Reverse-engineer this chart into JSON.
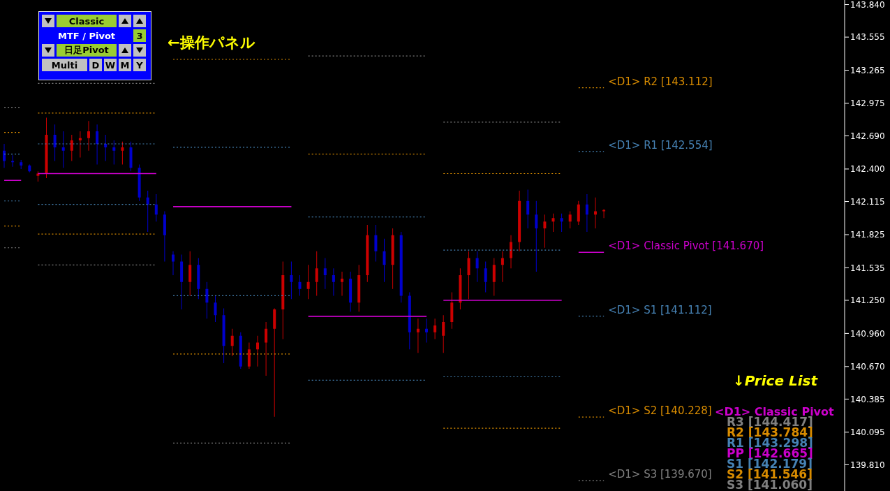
{
  "chart_data": {
    "type": "candlestick",
    "categories": [
      null,
      null,
      null,
      null,
      null,
      null,
      null,
      null,
      null,
      null,
      null,
      null,
      null,
      null,
      null,
      null,
      null,
      null,
      null,
      null,
      null,
      null,
      null,
      null,
      null,
      null,
      null,
      null,
      null,
      null,
      null,
      null,
      null,
      null,
      null,
      null,
      null,
      null,
      null,
      null,
      null,
      null,
      null,
      null,
      null,
      null,
      null,
      null,
      null,
      null,
      null,
      null,
      null,
      null,
      null,
      null,
      null,
      null,
      null,
      null,
      null,
      null,
      null,
      null,
      null,
      null,
      null,
      null,
      null,
      null,
      null,
      null,
      null,
      null,
      null,
      null,
      null,
      null,
      null,
      null,
      null,
      null,
      null,
      null,
      null,
      null,
      null,
      null,
      null,
      null,
      null,
      null,
      null,
      null,
      null,
      null,
      null,
      null,
      null,
      null
    ],
    "ohlc": [
      [
        142.56,
        142.62,
        142.41,
        142.47
      ],
      [
        142.47,
        142.52,
        142.42,
        142.46
      ],
      [
        142.46,
        142.48,
        142.4,
        142.43
      ],
      [
        142.43,
        142.44,
        142.37,
        142.38
      ],
      [
        142.34,
        142.38,
        142.29,
        142.36
      ],
      [
        142.36,
        142.85,
        142.32,
        142.7
      ],
      [
        142.7,
        142.79,
        142.47,
        142.59
      ],
      [
        142.59,
        142.73,
        142.41,
        142.56
      ],
      [
        142.56,
        142.7,
        142.47,
        142.65
      ],
      [
        142.65,
        142.73,
        142.5,
        142.67
      ],
      [
        142.67,
        142.82,
        142.56,
        142.73
      ],
      [
        142.73,
        142.79,
        142.44,
        142.62
      ],
      [
        142.62,
        142.7,
        142.47,
        142.59
      ],
      [
        142.59,
        142.65,
        142.44,
        142.56
      ],
      [
        142.56,
        142.64,
        142.44,
        142.59
      ],
      [
        142.59,
        142.64,
        142.38,
        142.41
      ],
      [
        142.41,
        142.44,
        142.12,
        142.15
      ],
      [
        142.15,
        142.21,
        141.85,
        142.09
      ],
      [
        142.09,
        142.18,
        141.94,
        142.0
      ],
      [
        142.0,
        142.03,
        141.59,
        141.82
      ],
      [
        141.65,
        141.68,
        141.47,
        141.59
      ],
      [
        141.59,
        141.65,
        141.17,
        141.41
      ],
      [
        141.41,
        141.68,
        141.29,
        141.56
      ],
      [
        141.56,
        141.62,
        141.26,
        141.35
      ],
      [
        141.35,
        141.41,
        141.09,
        141.23
      ],
      [
        141.23,
        141.29,
        141.06,
        141.12
      ],
      [
        141.12,
        141.18,
        140.7,
        140.85
      ],
      [
        140.85,
        141.0,
        140.76,
        140.94
      ],
      [
        140.94,
        140.97,
        140.65,
        140.67
      ],
      [
        140.67,
        140.88,
        140.65,
        140.82
      ],
      [
        140.82,
        140.94,
        140.67,
        140.88
      ],
      [
        140.88,
        141.06,
        140.59,
        141.0
      ],
      [
        141.0,
        141.18,
        140.23,
        141.17
      ],
      [
        141.17,
        141.59,
        140.91,
        141.47
      ],
      [
        141.47,
        141.59,
        141.26,
        141.41
      ],
      [
        141.41,
        141.47,
        141.29,
        141.35
      ],
      [
        141.35,
        141.56,
        141.26,
        141.41
      ],
      [
        141.41,
        141.68,
        141.29,
        141.53
      ],
      [
        141.53,
        141.62,
        141.35,
        141.47
      ],
      [
        141.47,
        141.53,
        141.29,
        141.41
      ],
      [
        141.41,
        141.5,
        141.29,
        141.44
      ],
      [
        141.44,
        141.5,
        141.15,
        141.23
      ],
      [
        141.23,
        141.56,
        141.15,
        141.47
      ],
      [
        141.47,
        141.91,
        141.41,
        141.82
      ],
      [
        141.82,
        141.91,
        141.59,
        141.68
      ],
      [
        141.68,
        141.79,
        141.41,
        141.56
      ],
      [
        141.56,
        141.88,
        141.35,
        141.82
      ],
      [
        141.82,
        141.85,
        141.23,
        141.29
      ],
      [
        141.29,
        141.32,
        140.82,
        140.97
      ],
      [
        140.97,
        141.09,
        140.79,
        141.0
      ],
      [
        141.0,
        141.09,
        140.88,
        140.97
      ],
      [
        140.97,
        141.09,
        140.91,
        141.03
      ],
      [
        140.94,
        141.12,
        140.79,
        141.06
      ],
      [
        141.06,
        141.32,
        141.0,
        141.23
      ],
      [
        141.23,
        141.53,
        141.17,
        141.47
      ],
      [
        141.47,
        141.68,
        141.26,
        141.62
      ],
      [
        141.62,
        141.68,
        141.41,
        141.53
      ],
      [
        141.53,
        141.59,
        141.32,
        141.41
      ],
      [
        141.41,
        141.62,
        141.29,
        141.56
      ],
      [
        141.56,
        141.68,
        141.41,
        141.62
      ],
      [
        141.62,
        141.82,
        141.53,
        141.76
      ],
      [
        141.76,
        142.21,
        141.68,
        142.12
      ],
      [
        142.12,
        142.22,
        141.88,
        142.0
      ],
      [
        142.0,
        142.12,
        141.5,
        141.88
      ],
      [
        141.88,
        142.0,
        141.71,
        141.94
      ],
      [
        141.94,
        142.01,
        141.85,
        141.97
      ],
      [
        141.97,
        142.01,
        141.85,
        141.94
      ],
      [
        141.94,
        142.03,
        141.88,
        142.0
      ],
      [
        141.94,
        142.12,
        141.91,
        142.09
      ],
      [
        142.09,
        142.18,
        141.85,
        142.0
      ],
      [
        142.0,
        142.15,
        141.88,
        142.03
      ],
      [
        142.03,
        142.05,
        141.97,
        142.04
      ],
      null,
      null,
      null,
      null,
      null,
      null,
      null,
      null,
      null,
      null,
      null,
      null,
      null,
      null,
      null,
      null,
      null,
      null,
      null,
      null,
      null,
      null,
      null,
      null,
      null,
      null,
      null,
      null
    ],
    "colors": [
      "#0000cc",
      "#0000cc",
      "#0000cc",
      "#0000cc",
      "#cc0000",
      "#cc0000",
      "#0000cc",
      "#0000cc",
      "#cc0000",
      "#cc0000",
      "#cc0000",
      "#0000cc",
      "#0000cc",
      "#0000cc",
      "#cc0000",
      "#0000cc",
      "#0000cc",
      "#0000cc",
      "#0000cc",
      "#0000cc",
      "#0000cc",
      "#0000cc",
      "#cc0000",
      "#0000cc",
      "#0000cc",
      "#0000cc",
      "#0000cc",
      "#cc0000",
      "#0000cc",
      "#cc0000",
      "#cc0000",
      "#cc0000",
      "#cc0000",
      "#cc0000",
      "#0000cc",
      "#0000cc",
      "#cc0000",
      "#cc0000",
      "#0000cc",
      "#0000cc",
      "#cc0000",
      "#0000cc",
      "#cc0000",
      "#cc0000",
      "#0000cc",
      "#0000cc",
      "#cc0000",
      "#0000cc",
      "#0000cc",
      "#cc0000",
      "#0000cc",
      "#cc0000",
      "#cc0000",
      "#cc0000",
      "#cc0000",
      "#cc0000",
      "#0000cc",
      "#0000cc",
      "#cc0000",
      "#cc0000",
      "#cc0000",
      "#cc0000",
      "#0000cc",
      "#0000cc",
      "#cc0000",
      "#cc0000",
      "#0000cc",
      "#cc0000",
      "#cc0000",
      "#0000cc",
      "#cc0000",
      "#cc0000",
      null,
      null,
      null,
      null,
      null,
      null,
      null,
      null,
      null,
      null,
      null,
      null,
      null,
      null,
      null,
      null,
      null,
      null,
      null,
      null,
      null,
      null,
      null,
      null,
      null,
      null,
      null,
      null
    ],
    "series": [
      {
        "type": "line",
        "line_style": "dotted",
        "color": "#808080",
        "values": [
          142.94,
          142.94,
          142.94,
          null,
          143.15,
          143.15,
          143.15,
          143.15,
          143.15,
          143.15,
          143.15,
          143.15,
          143.15,
          143.15,
          143.15,
          143.15,
          143.15,
          143.15,
          143.15,
          null,
          null,
          null,
          null,
          null,
          null,
          null,
          null,
          null,
          null,
          null,
          null,
          null,
          null,
          null,
          null,
          null,
          143.39,
          143.39,
          143.39,
          143.39,
          143.39,
          143.39,
          143.39,
          143.39,
          143.39,
          143.39,
          143.39,
          143.39,
          143.39,
          143.39,
          143.39,
          null,
          142.81,
          142.81,
          142.81,
          142.81,
          142.81,
          142.81,
          142.81,
          142.81,
          142.81,
          142.81,
          142.81,
          142.81,
          142.81,
          142.81,
          142.81,
          null,
          null,
          null,
          null,
          null,
          null,
          null,
          null,
          null,
          null,
          null,
          null,
          null,
          null,
          null,
          null,
          null,
          null,
          null,
          null,
          null,
          null,
          null,
          null,
          null,
          null,
          null,
          null,
          null,
          null,
          null,
          null,
          null
        ]
      },
      {
        "type": "line",
        "line_style": "dotted",
        "name": "<D1> R2 [143.112]",
        "color": "#d98c00",
        "values": [
          142.72,
          142.72,
          142.72,
          null,
          142.89,
          142.89,
          142.89,
          142.89,
          142.89,
          142.89,
          142.89,
          142.89,
          142.89,
          142.89,
          142.89,
          142.89,
          142.89,
          142.89,
          142.89,
          null,
          143.36,
          143.36,
          143.36,
          143.36,
          143.36,
          143.36,
          143.36,
          143.36,
          143.36,
          143.36,
          143.36,
          143.36,
          143.36,
          143.36,
          143.36,
          null,
          142.53,
          142.53,
          142.53,
          142.53,
          142.53,
          142.53,
          142.53,
          142.53,
          142.53,
          142.53,
          142.53,
          142.53,
          142.53,
          142.53,
          142.53,
          null,
          142.36,
          142.36,
          142.36,
          142.36,
          142.36,
          142.36,
          142.36,
          142.36,
          142.36,
          142.36,
          142.36,
          142.36,
          142.36,
          142.36,
          142.36,
          null,
          143.112,
          143.112,
          143.112,
          143.112,
          null,
          null,
          null,
          null,
          null,
          null,
          null,
          null,
          null,
          null,
          null,
          null,
          null,
          null,
          null,
          null,
          null,
          null,
          null,
          null,
          null,
          null,
          null,
          null,
          null,
          null,
          null,
          null
        ]
      },
      {
        "type": "line",
        "line_style": "dotted",
        "name": "<D1> R1 [142.554]",
        "color": "#4682b4",
        "values": [
          142.53,
          142.53,
          142.53,
          null,
          142.62,
          142.62,
          142.62,
          142.62,
          142.62,
          142.62,
          142.62,
          142.62,
          142.62,
          142.62,
          142.62,
          142.62,
          142.62,
          142.62,
          142.62,
          null,
          142.59,
          142.59,
          142.59,
          142.59,
          142.59,
          142.59,
          142.59,
          142.59,
          142.59,
          142.59,
          142.59,
          142.59,
          142.59,
          142.59,
          142.59,
          null,
          141.98,
          141.98,
          141.98,
          141.98,
          141.98,
          141.98,
          141.98,
          141.98,
          141.98,
          141.98,
          141.98,
          141.98,
          141.98,
          141.98,
          141.98,
          null,
          141.69,
          141.69,
          141.69,
          141.69,
          141.69,
          141.69,
          141.69,
          141.69,
          141.69,
          141.69,
          141.69,
          141.69,
          141.69,
          141.69,
          141.69,
          null,
          142.554,
          142.554,
          142.554,
          142.554,
          null,
          null,
          null,
          null,
          null,
          null,
          null,
          null,
          null,
          null,
          null,
          null,
          null,
          null,
          null,
          null,
          null,
          null,
          null,
          null,
          null,
          null,
          null,
          null,
          null,
          null,
          null,
          null
        ]
      },
      {
        "type": "line",
        "line_style": "solid",
        "name": "<D1> Classic Pivot [141.670]",
        "color": "#cc00cc",
        "values": [
          142.3,
          142.3,
          142.3,
          null,
          142.36,
          142.36,
          142.36,
          142.36,
          142.36,
          142.36,
          142.36,
          142.36,
          142.36,
          142.36,
          142.36,
          142.36,
          142.36,
          142.36,
          142.36,
          null,
          142.07,
          142.07,
          142.07,
          142.07,
          142.07,
          142.07,
          142.07,
          142.07,
          142.07,
          142.07,
          142.07,
          142.07,
          142.07,
          142.07,
          142.07,
          null,
          141.11,
          141.11,
          141.11,
          141.11,
          141.11,
          141.11,
          141.11,
          141.11,
          141.11,
          141.11,
          141.11,
          141.11,
          141.11,
          141.11,
          141.11,
          null,
          141.25,
          141.25,
          141.25,
          141.25,
          141.25,
          141.25,
          141.25,
          141.25,
          141.25,
          141.25,
          141.25,
          141.25,
          141.25,
          141.25,
          141.25,
          null,
          141.67,
          141.67,
          141.67,
          141.67,
          null,
          null,
          null,
          null,
          null,
          null,
          null,
          null,
          null,
          null,
          null,
          null,
          null,
          null,
          null,
          null,
          null,
          null,
          null,
          null,
          null,
          null,
          null,
          null,
          null,
          null,
          null,
          null
        ]
      },
      {
        "type": "line",
        "line_style": "dotted",
        "name": "<D1> S1 [141.112]",
        "color": "#4682b4",
        "values": [
          142.12,
          142.12,
          142.12,
          null,
          142.09,
          142.09,
          142.09,
          142.09,
          142.09,
          142.09,
          142.09,
          142.09,
          142.09,
          142.09,
          142.09,
          142.09,
          142.09,
          142.09,
          142.09,
          null,
          141.29,
          141.29,
          141.29,
          141.29,
          141.29,
          141.29,
          141.29,
          141.29,
          141.29,
          141.29,
          141.29,
          141.29,
          141.29,
          141.29,
          141.29,
          null,
          140.55,
          140.55,
          140.55,
          140.55,
          140.55,
          140.55,
          140.55,
          140.55,
          140.55,
          140.55,
          140.55,
          140.55,
          140.55,
          140.55,
          140.55,
          null,
          140.58,
          140.58,
          140.58,
          140.58,
          140.58,
          140.58,
          140.58,
          140.58,
          140.58,
          140.58,
          140.58,
          140.58,
          140.58,
          140.58,
          140.58,
          null,
          141.112,
          141.112,
          141.112,
          141.112,
          null,
          null,
          null,
          null,
          null,
          null,
          null,
          null,
          null,
          null,
          null,
          null,
          null,
          null,
          null,
          null,
          null,
          null,
          null,
          null,
          null,
          null,
          null,
          null,
          null,
          null,
          null,
          null
        ]
      },
      {
        "type": "line",
        "line_style": "dotted",
        "name": "<D1> S2 [140.228]",
        "color": "#d98c00",
        "values": [
          141.9,
          141.9,
          141.9,
          null,
          141.83,
          141.83,
          141.83,
          141.83,
          141.83,
          141.83,
          141.83,
          141.83,
          141.83,
          141.83,
          141.83,
          141.83,
          141.83,
          141.83,
          141.83,
          null,
          140.78,
          140.78,
          140.78,
          140.78,
          140.78,
          140.78,
          140.78,
          140.78,
          140.78,
          140.78,
          140.78,
          140.78,
          140.78,
          140.78,
          140.78,
          null,
          null,
          null,
          null,
          null,
          null,
          null,
          null,
          null,
          null,
          null,
          null,
          null,
          null,
          null,
          null,
          null,
          140.13,
          140.13,
          140.13,
          140.13,
          140.13,
          140.13,
          140.13,
          140.13,
          140.13,
          140.13,
          140.13,
          140.13,
          140.13,
          140.13,
          140.13,
          null,
          140.228,
          140.228,
          140.228,
          140.228,
          null,
          null,
          null,
          null,
          null,
          null,
          null,
          null,
          null,
          null,
          null,
          null,
          null,
          null,
          null,
          null,
          null,
          null,
          null,
          null,
          null,
          null,
          null,
          null,
          null,
          null,
          null,
          null
        ]
      },
      {
        "type": "line",
        "line_style": "dotted",
        "name": "<D1> S3 [139.670]",
        "color": "#808080",
        "values": [
          141.71,
          141.71,
          141.71,
          null,
          141.56,
          141.56,
          141.56,
          141.56,
          141.56,
          141.56,
          141.56,
          141.56,
          141.56,
          141.56,
          141.56,
          141.56,
          141.56,
          141.56,
          141.56,
          null,
          140.0,
          140.0,
          140.0,
          140.0,
          140.0,
          140.0,
          140.0,
          140.0,
          140.0,
          140.0,
          140.0,
          140.0,
          140.0,
          140.0,
          140.0,
          null,
          null,
          null,
          null,
          null,
          null,
          null,
          null,
          null,
          null,
          null,
          null,
          null,
          null,
          null,
          null,
          null,
          null,
          null,
          null,
          null,
          null,
          null,
          null,
          null,
          null,
          null,
          null,
          null,
          null,
          null,
          null,
          null,
          139.67,
          139.67,
          139.67,
          139.67,
          null,
          null,
          null,
          null,
          null,
          null,
          null,
          null,
          null,
          null,
          null,
          null,
          null,
          null,
          null,
          null,
          null,
          null,
          null,
          null,
          null,
          null,
          null,
          null,
          null,
          null,
          null,
          null
        ]
      }
    ],
    "ylim": [
      139.58,
      143.88
    ],
    "yticks": [
      {
        "value": 143.84,
        "label": "143.840"
      },
      {
        "value": 143.555,
        "label": "143.555"
      },
      {
        "value": 143.265,
        "label": "143.265"
      },
      {
        "value": 142.975,
        "label": "142.975"
      },
      {
        "value": 142.69,
        "label": "142.690"
      },
      {
        "value": 142.4,
        "label": "142.400"
      },
      {
        "value": 142.115,
        "label": "142.115"
      },
      {
        "value": 141.825,
        "label": "141.825"
      },
      {
        "value": 141.535,
        "label": "141.535"
      },
      {
        "value": 141.25,
        "label": "141.250"
      },
      {
        "value": 140.96,
        "label": "140.960"
      },
      {
        "value": 140.67,
        "label": "140.670"
      },
      {
        "value": 140.385,
        "label": "140.385"
      },
      {
        "value": 140.095,
        "label": "140.095"
      },
      {
        "value": 139.81,
        "label": "139.810"
      }
    ],
    "tick_labels": "y",
    "annotations": [
      "←操作パネル",
      "↓Price List",
      "<D1> Classic Pivot",
      "R3 [144.417]",
      "R2 [143.784]",
      "R1 [143.298]",
      "PP [142.665]",
      "S1 [142.179]",
      "S2 [141.546]",
      "S3 [141.060]",
      "Classic",
      "MTF / Pivot",
      "3",
      "日足Pivot",
      "Multi",
      "D",
      "W",
      "M",
      "Y"
    ]
  }
}
